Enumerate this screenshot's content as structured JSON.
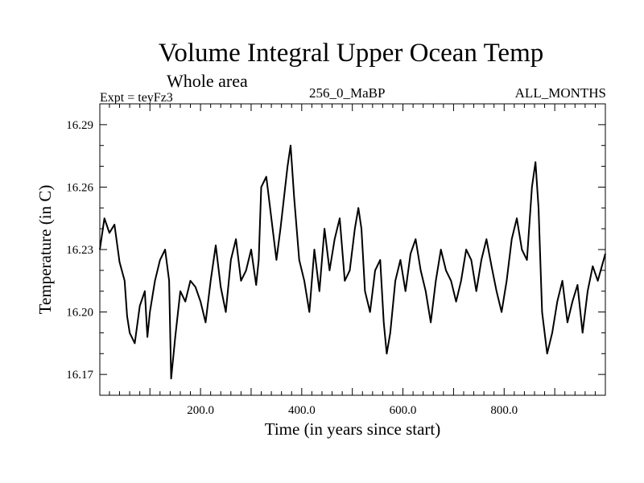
{
  "header": {
    "title": "Volume Integral Upper Ocean Temp",
    "subtitle": "Whole area",
    "expt_label": "Expt = teyFz3",
    "run_label": "256_0_MaBP",
    "months_label": "ALL_MONTHS"
  },
  "colors": {
    "line": "#000000",
    "axes": "#000000",
    "background": "#ffffff"
  },
  "chart_data": {
    "type": "line",
    "title": "Volume Integral Upper Ocean Temp",
    "subtitle": "Whole area",
    "xlabel": "Time (in years since start)",
    "ylabel": "Temperature (in C)",
    "xlim": [
      1,
      1000
    ],
    "ylim": [
      16.16,
      16.3
    ],
    "xticks": [
      200.0,
      400.0,
      600.0,
      800.0
    ],
    "xtick_labels": [
      "200.0",
      "400.0",
      "600.0",
      "800.0"
    ],
    "yticks": [
      16.17,
      16.2,
      16.23,
      16.26,
      16.29
    ],
    "ytick_labels": [
      "16.17",
      "16.20",
      "16.23",
      "16.26",
      "16.29"
    ],
    "grid": false,
    "series": [
      {
        "name": "Volume Integral Upper Ocean Temp",
        "x": [
          1,
          10,
          20,
          30,
          40,
          50,
          55,
          60,
          70,
          80,
          90,
          95,
          100,
          110,
          120,
          130,
          138,
          142,
          150,
          160,
          170,
          180,
          190,
          200,
          210,
          220,
          230,
          240,
          250,
          260,
          270,
          280,
          290,
          300,
          310,
          315,
          320,
          330,
          340,
          350,
          358,
          365,
          372,
          378,
          385,
          395,
          405,
          415,
          425,
          435,
          445,
          455,
          465,
          475,
          485,
          495,
          505,
          512,
          518,
          525,
          535,
          545,
          555,
          562,
          568,
          575,
          585,
          595,
          605,
          615,
          625,
          635,
          645,
          655,
          665,
          675,
          685,
          695,
          705,
          715,
          725,
          735,
          745,
          755,
          765,
          775,
          785,
          795,
          805,
          815,
          825,
          835,
          845,
          855,
          862,
          868,
          875,
          885,
          895,
          905,
          915,
          925,
          935,
          945,
          955,
          965,
          975,
          985,
          1000
        ],
        "values": [
          16.23,
          16.245,
          16.238,
          16.242,
          16.224,
          16.215,
          16.198,
          16.19,
          16.185,
          16.203,
          16.21,
          16.188,
          16.2,
          16.215,
          16.225,
          16.23,
          16.215,
          16.168,
          16.188,
          16.21,
          16.205,
          16.215,
          16.212,
          16.205,
          16.195,
          16.215,
          16.232,
          16.212,
          16.2,
          16.225,
          16.235,
          16.215,
          16.22,
          16.23,
          16.213,
          16.225,
          16.26,
          16.265,
          16.245,
          16.225,
          16.24,
          16.255,
          16.27,
          16.28,
          16.255,
          16.225,
          16.215,
          16.2,
          16.23,
          16.21,
          16.24,
          16.22,
          16.235,
          16.245,
          16.215,
          16.22,
          16.24,
          16.25,
          16.24,
          16.21,
          16.2,
          16.22,
          16.225,
          16.195,
          16.18,
          16.19,
          16.215,
          16.225,
          16.21,
          16.228,
          16.235,
          16.22,
          16.21,
          16.195,
          16.215,
          16.23,
          16.22,
          16.215,
          16.205,
          16.215,
          16.23,
          16.225,
          16.21,
          16.225,
          16.235,
          16.222,
          16.21,
          16.2,
          16.215,
          16.235,
          16.245,
          16.23,
          16.225,
          16.26,
          16.272,
          16.25,
          16.2,
          16.18,
          16.19,
          16.205,
          16.215,
          16.195,
          16.205,
          16.213,
          16.19,
          16.21,
          16.222,
          16.215,
          16.228
        ]
      }
    ]
  }
}
